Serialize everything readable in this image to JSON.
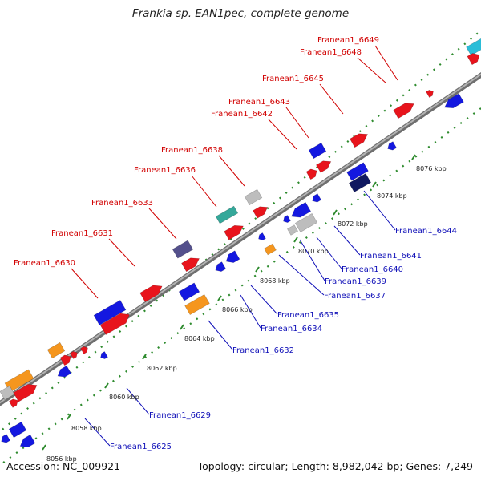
{
  "title": "Frankia sp. EAN1pec, complete genome",
  "footer": {
    "accession": "Accession: NC_009921",
    "summary": "Topology: circular; Length: 8,982,042 bp; Genes: 7,249"
  },
  "colors": {
    "backbone": "#8c8c8c",
    "dots": "#2e8b2e",
    "label_top": "#d10000",
    "label_bottom": "#1010b8",
    "red": "#e8141c",
    "blue": "#1418e0",
    "orange": "#f5961e",
    "gray": "#bdbdbd",
    "purple": "#54508c",
    "cyan": "#2bbdd8",
    "teal": "#35a89a",
    "navy": "#101860"
  },
  "scale_ticks": [
    "8056 kbp",
    "8058 kbp",
    "8060 kbp",
    "8062 kbp",
    "8064 kbp",
    "8066 kbp",
    "8068 kbp",
    "8070 kbp",
    "8072 kbp",
    "8074 kbp",
    "8076 kbp"
  ],
  "top_labels": [
    {
      "id": "franean1-6649",
      "text": "Franean1_6649"
    },
    {
      "id": "franean1-6648",
      "text": "Franean1_6648"
    },
    {
      "id": "franean1-6645",
      "text": "Franean1_6645"
    },
    {
      "id": "franean1-6643",
      "text": "Franean1_6643"
    },
    {
      "id": "franean1-6642",
      "text": "Franean1_6642"
    },
    {
      "id": "franean1-6638",
      "text": "Franean1_6638"
    },
    {
      "id": "franean1-6636",
      "text": "Franean1_6636"
    },
    {
      "id": "franean1-6633",
      "text": "Franean1_6633"
    },
    {
      "id": "franean1-6631",
      "text": "Franean1_6631"
    },
    {
      "id": "franean1-6630",
      "text": "Franean1_6630"
    }
  ],
  "bottom_labels": [
    {
      "id": "franean1-6644",
      "text": "Franean1_6644"
    },
    {
      "id": "franean1-6641",
      "text": "Franean1_6641"
    },
    {
      "id": "franean1-6640",
      "text": "Franean1_6640"
    },
    {
      "id": "franean1-6639",
      "text": "Franean1_6639"
    },
    {
      "id": "franean1-6637",
      "text": "Franean1_6637"
    },
    {
      "id": "franean1-6635",
      "text": "Franean1_6635"
    },
    {
      "id": "franean1-6634",
      "text": "Franean1_6634"
    },
    {
      "id": "franean1-6632",
      "text": "Franean1_6632"
    },
    {
      "id": "franean1-6629",
      "text": "Franean1_6629"
    },
    {
      "id": "franean1-6625",
      "text": "Franean1_6625"
    }
  ]
}
